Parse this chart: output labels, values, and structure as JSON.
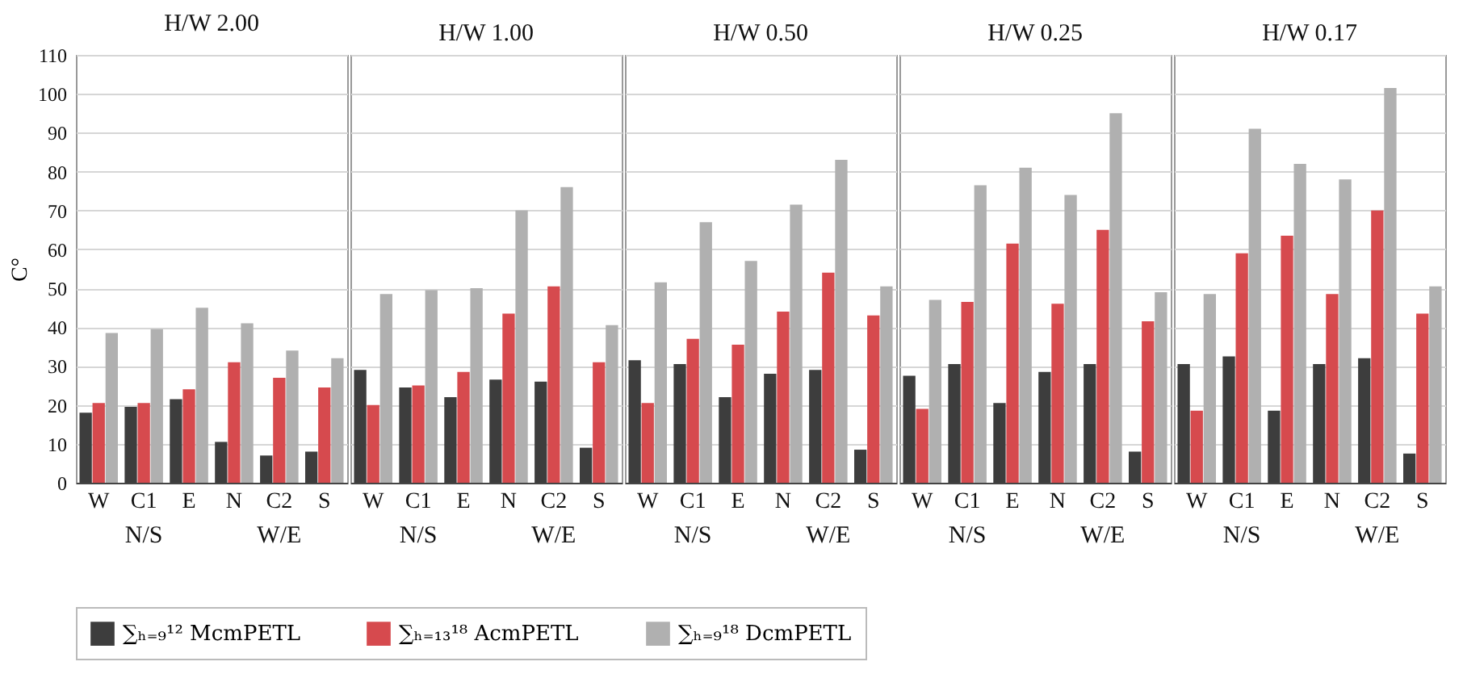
{
  "chart_data": [
    {
      "type": "bar",
      "title": "H/W 2.00",
      "ylabel": "C°",
      "categories": [
        "W",
        "C1",
        "E",
        "N",
        "C2",
        "S"
      ],
      "series": [
        {
          "name": "∑ₕ₌₉¹² McmPETL",
          "color": "#3d3d3d",
          "values": [
            18,
            19.5,
            21.5,
            10.5,
            7,
            8
          ]
        },
        {
          "name": "∑ₕ₌₁₃¹⁸ AcmPETL",
          "color": "#d64a4e",
          "values": [
            20.5,
            20.5,
            24,
            31,
            27,
            24.5
          ]
        },
        {
          "name": "∑ₕ₌₉¹⁸ DcmPETL",
          "color": "#b0b0b0",
          "values": [
            38.5,
            39.5,
            45,
            41,
            34,
            32
          ]
        }
      ],
      "ylim": [
        0,
        110
      ],
      "yticks": [
        0,
        10,
        20,
        30,
        40,
        50,
        60,
        70,
        80,
        90,
        100,
        110
      ],
      "grid": "y",
      "legend": "bottom",
      "annotations": [
        "N/S",
        "W/E"
      ]
    },
    {
      "type": "bar",
      "title": "H/W 1.00",
      "categories": [
        "W",
        "C1",
        "E",
        "N",
        "C2",
        "S"
      ],
      "series": [
        {
          "name": "∑ₕ₌₉¹² McmPETL",
          "color": "#3d3d3d",
          "values": [
            29,
            24.5,
            22,
            26.5,
            26,
            9
          ]
        },
        {
          "name": "∑ₕ₌₁₃¹⁸ AcmPETL",
          "color": "#d64a4e",
          "values": [
            20,
            25,
            28.5,
            43.5,
            50.5,
            31
          ]
        },
        {
          "name": "∑ₕ₌₉¹⁸ DcmPETL",
          "color": "#b0b0b0",
          "values": [
            48.5,
            49.5,
            50,
            70,
            76,
            40.5
          ]
        }
      ],
      "ylim": [
        0,
        110
      ],
      "yticks": [
        0,
        10,
        20,
        30,
        40,
        50,
        60,
        70,
        80,
        90,
        100,
        110
      ],
      "grid": "y",
      "tick_labels": "x",
      "annotations": [
        "N/S",
        "W/E"
      ]
    },
    {
      "type": "bar",
      "title": "H/W 0.50",
      "categories": [
        "W",
        "C1",
        "E",
        "N",
        "C2",
        "S"
      ],
      "series": [
        {
          "name": "∑ₕ₌₉¹² McmPETL",
          "color": "#3d3d3d",
          "values": [
            31.5,
            30.5,
            22,
            28,
            29,
            8.5
          ]
        },
        {
          "name": "∑ₕ₌₁₃¹⁸ AcmPETL",
          "color": "#d64a4e",
          "values": [
            20.5,
            37,
            35.5,
            44,
            54,
            43
          ]
        },
        {
          "name": "∑ₕ₌₉¹⁸ DcmPETL",
          "color": "#b0b0b0",
          "values": [
            51.5,
            67,
            57,
            71.5,
            83,
            50.5
          ]
        }
      ],
      "ylim": [
        0,
        110
      ],
      "yticks": [
        0,
        10,
        20,
        30,
        40,
        50,
        60,
        70,
        80,
        90,
        100,
        110
      ],
      "grid": "y",
      "tick_labels": "x",
      "annotations": [
        "N/S",
        "W/E"
      ]
    },
    {
      "type": "bar",
      "title": "H/W 0.25",
      "categories": [
        "W",
        "C1",
        "E",
        "N",
        "C2",
        "S"
      ],
      "series": [
        {
          "name": "∑ₕ₌₉¹² McmPETL",
          "color": "#3d3d3d",
          "values": [
            27.5,
            30.5,
            20.5,
            28.5,
            30.5,
            8
          ]
        },
        {
          "name": "∑ₕ₌₁₃¹⁸ AcmPETL",
          "color": "#d64a4e",
          "values": [
            19,
            46.5,
            61.5,
            46,
            65,
            41.5
          ]
        },
        {
          "name": "∑ₕ₌₉¹⁸ DcmPETL",
          "color": "#b0b0b0",
          "values": [
            47,
            76.5,
            81,
            74,
            95,
            49
          ]
        }
      ],
      "ylim": [
        0,
        110
      ],
      "yticks": [
        0,
        10,
        20,
        30,
        40,
        50,
        60,
        70,
        80,
        90,
        100,
        110
      ],
      "grid": "y",
      "tick_labels": "x",
      "annotations": [
        "N/S",
        "W/E"
      ]
    },
    {
      "type": "bar",
      "title": "H/W 0.17",
      "categories": [
        "W",
        "C1",
        "E",
        "N",
        "C2",
        "S"
      ],
      "series": [
        {
          "name": "∑ₕ₌₉¹² McmPETL",
          "color": "#3d3d3d",
          "values": [
            30.5,
            32.5,
            18.5,
            30.5,
            32,
            7.5
          ]
        },
        {
          "name": "∑ₕ₌₁₃¹⁸ AcmPETL",
          "color": "#d64a4e",
          "values": [
            18.5,
            59,
            63.5,
            48.5,
            70,
            43.5
          ]
        },
        {
          "name": "∑ₕ₌₉¹⁸ DcmPETL",
          "color": "#b0b0b0",
          "values": [
            48.5,
            91,
            82,
            78,
            101.5,
            50.5
          ]
        }
      ],
      "ylim": [
        0,
        110
      ],
      "yticks": [
        0,
        10,
        20,
        30,
        40,
        50,
        60,
        70,
        80,
        90,
        100,
        110
      ],
      "grid": "y",
      "tick_labels": "x",
      "annotations": [
        "N/S",
        "W/E"
      ]
    }
  ]
}
